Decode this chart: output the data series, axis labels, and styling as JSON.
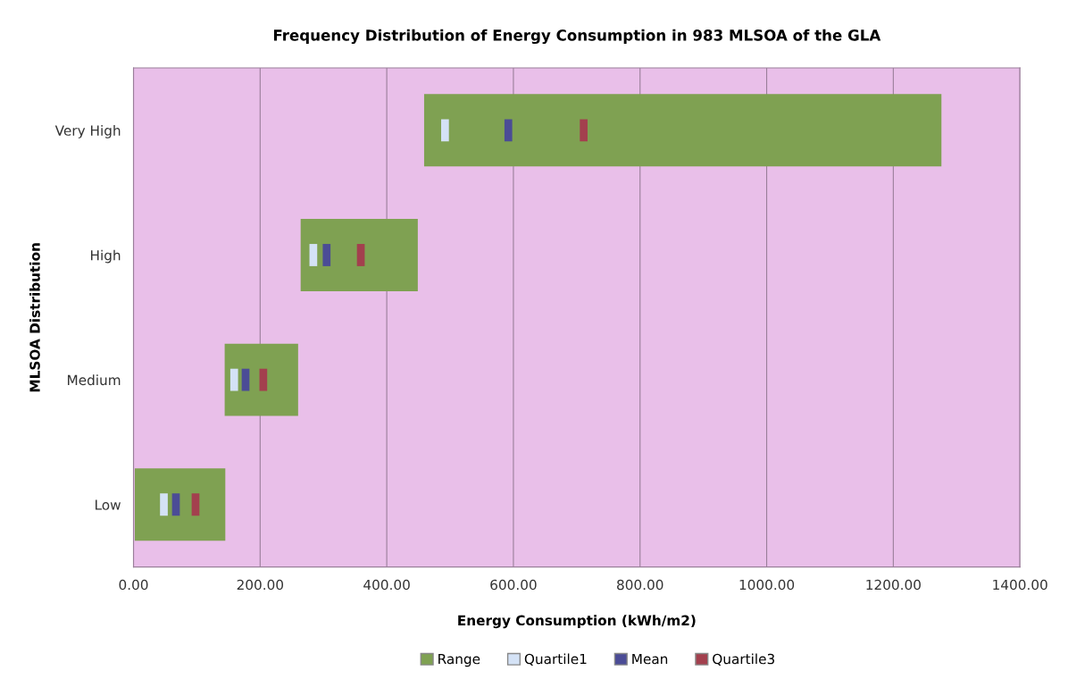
{
  "chart_data": {
    "type": "bar",
    "orientation": "horizontal",
    "title": "Frequency Distribution of Energy Consumption in 983 MLSOA of the GLA",
    "xlabel": "Energy Consumption (kWh/m2)",
    "ylabel": "MLSOA Distribution",
    "categories": [
      "Very High",
      "High",
      "Medium",
      "Low"
    ],
    "series": [
      {
        "name": "Range",
        "color": "#7fa152",
        "type": "bar",
        "base": [
          459,
          264,
          144,
          2
        ],
        "values": [
          817,
          185,
          116,
          143
        ]
      },
      {
        "name": "Quartile1",
        "color": "#d4e2f6",
        "type": "scatter",
        "values": [
          492,
          284,
          159,
          48
        ]
      },
      {
        "name": "Mean",
        "color": "#4b4c96",
        "type": "scatter",
        "values": [
          592,
          305,
          177,
          67
        ]
      },
      {
        "name": "Quartile3",
        "color": "#a3404e",
        "type": "scatter",
        "values": [
          711,
          359,
          205,
          98
        ]
      }
    ],
    "xlim": [
      0,
      1400
    ],
    "xticks": [
      {
        "value": 0,
        "label": "0.00"
      },
      {
        "value": 200,
        "label": "200.00"
      },
      {
        "value": 400,
        "label": "400.00"
      },
      {
        "value": 600,
        "label": "600.00"
      },
      {
        "value": 800,
        "label": "800.00"
      },
      {
        "value": 1000,
        "label": "1000.00"
      },
      {
        "value": 1200,
        "label": "1200.00"
      },
      {
        "value": 1400,
        "label": "1400.00"
      }
    ],
    "grid": "x",
    "legend": "bottom"
  }
}
